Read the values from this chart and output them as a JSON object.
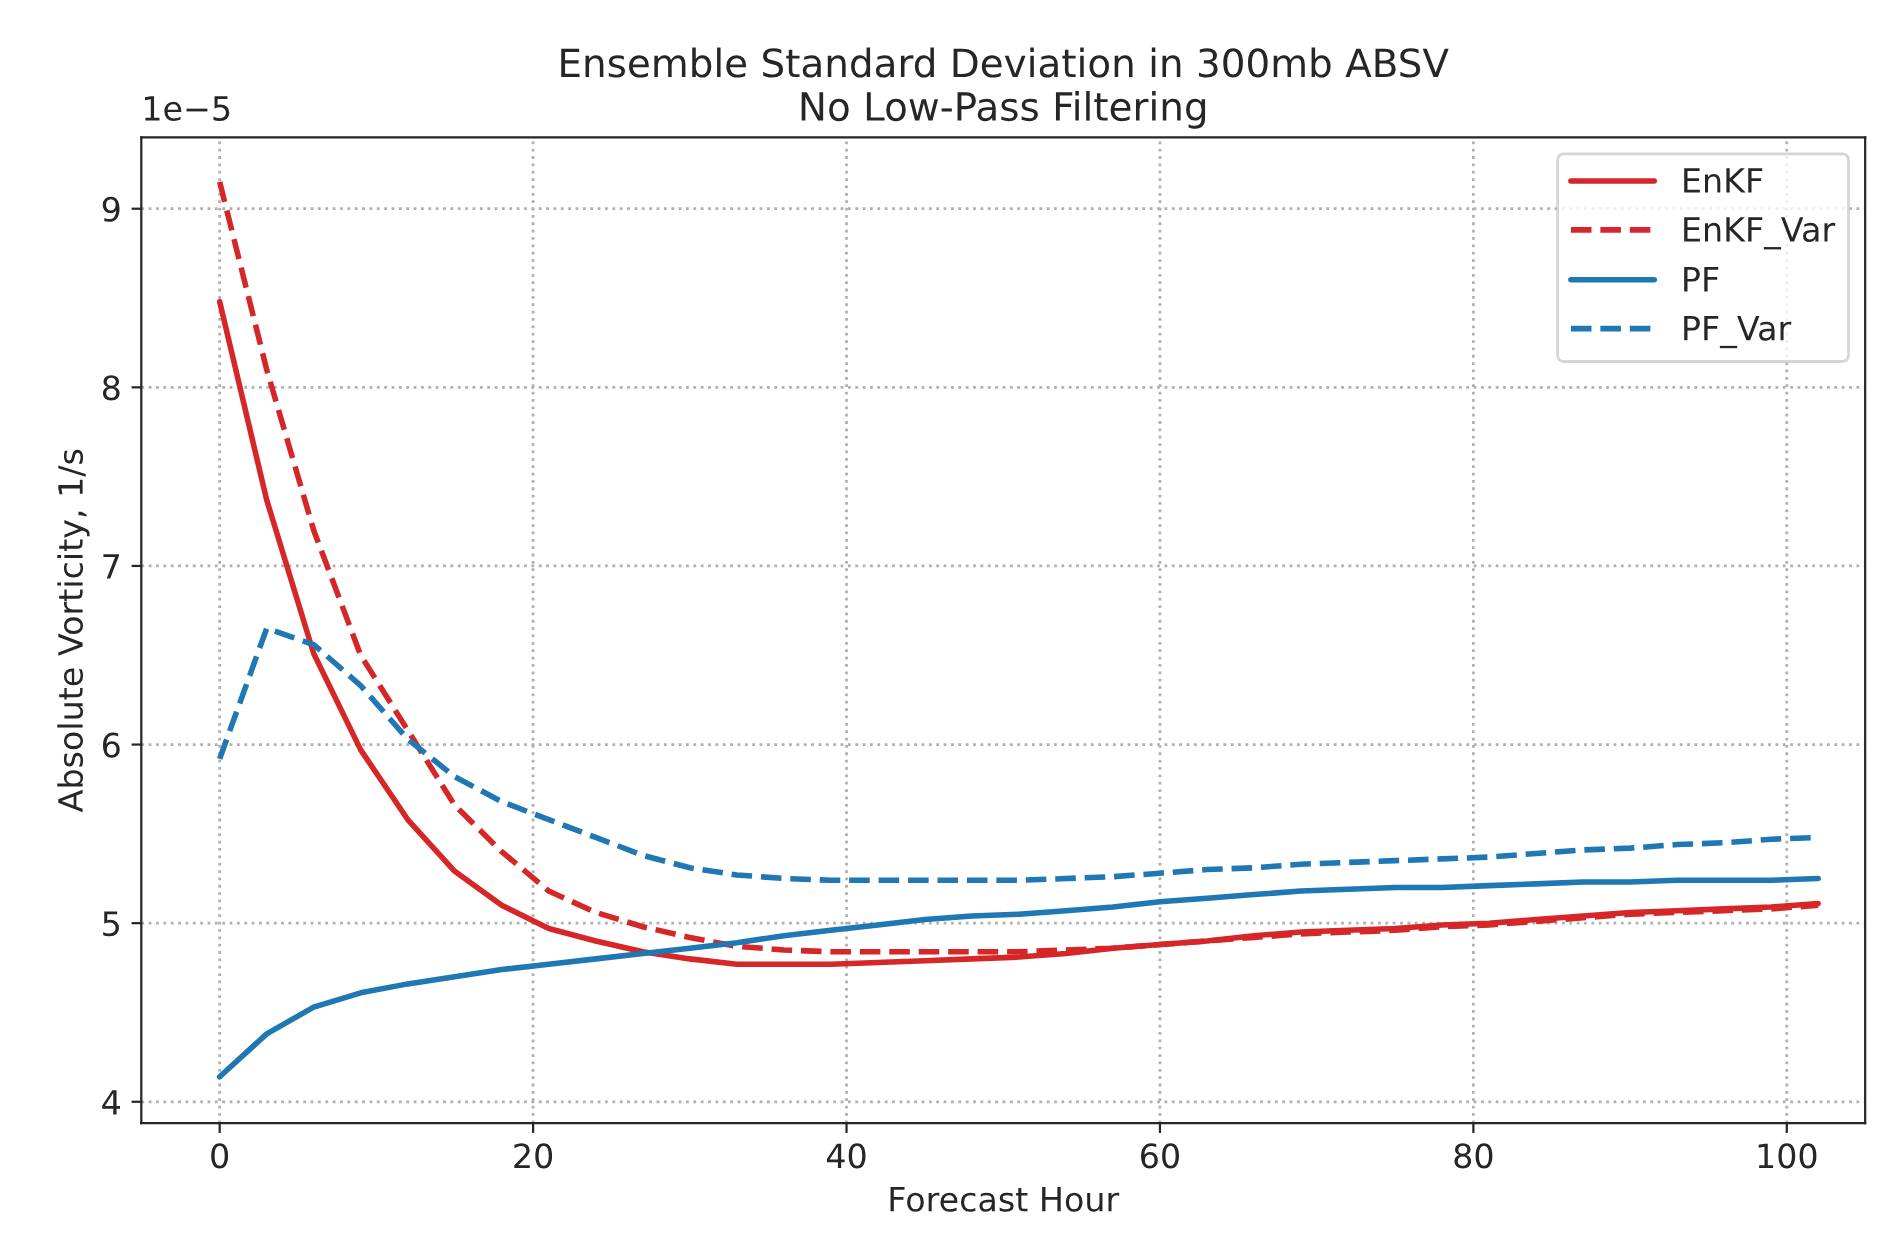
{
  "chart_data": {
    "type": "line",
    "title": "Ensemble Standard Deviation in 300mb ABSV\nNo Low-Pass Filtering",
    "xlabel": "Forecast Hour",
    "ylabel": "Absolute Vorticity, 1/s",
    "annotations": [
      "1e−5"
    ],
    "x": [
      0,
      3,
      6,
      9,
      12,
      15,
      18,
      21,
      24,
      27,
      30,
      33,
      36,
      39,
      42,
      45,
      48,
      51,
      54,
      57,
      60,
      63,
      66,
      69,
      72,
      75,
      78,
      81,
      84,
      87,
      90,
      93,
      96,
      99,
      102
    ],
    "series": [
      {
        "name": "EnKF",
        "color": "#d62728",
        "line_style": "solid",
        "values": [
          8.48,
          7.37,
          6.51,
          5.97,
          5.58,
          5.29,
          5.1,
          4.97,
          4.9,
          4.84,
          4.8,
          4.77,
          4.77,
          4.77,
          4.78,
          4.79,
          4.8,
          4.81,
          4.83,
          4.86,
          4.88,
          4.9,
          4.93,
          4.95,
          4.96,
          4.97,
          4.99,
          5.0,
          5.02,
          5.04,
          5.06,
          5.07,
          5.08,
          5.09,
          5.11
        ]
      },
      {
        "name": "EnKF_Var",
        "color": "#d62728",
        "line_style": "dashed",
        "values": [
          9.15,
          8.1,
          7.2,
          6.5,
          6.08,
          5.66,
          5.4,
          5.18,
          5.06,
          4.98,
          4.92,
          4.87,
          4.85,
          4.84,
          4.84,
          4.84,
          4.84,
          4.84,
          4.85,
          4.86,
          4.88,
          4.9,
          4.92,
          4.94,
          4.95,
          4.96,
          4.98,
          4.99,
          5.01,
          5.03,
          5.05,
          5.06,
          5.07,
          5.08,
          5.1
        ]
      },
      {
        "name": "PF",
        "color": "#1f77b4",
        "line_style": "solid",
        "values": [
          4.14,
          4.38,
          4.53,
          4.61,
          4.66,
          4.7,
          4.74,
          4.77,
          4.8,
          4.83,
          4.86,
          4.89,
          4.93,
          4.96,
          4.99,
          5.02,
          5.04,
          5.05,
          5.07,
          5.09,
          5.12,
          5.14,
          5.16,
          5.18,
          5.19,
          5.2,
          5.2,
          5.21,
          5.22,
          5.23,
          5.23,
          5.24,
          5.24,
          5.24,
          5.25
        ]
      },
      {
        "name": "PF_Var",
        "color": "#1f77b4",
        "line_style": "dashed",
        "values": [
          5.92,
          6.65,
          6.56,
          6.33,
          6.03,
          5.82,
          5.68,
          5.58,
          5.48,
          5.38,
          5.31,
          5.27,
          5.25,
          5.24,
          5.24,
          5.24,
          5.24,
          5.24,
          5.25,
          5.26,
          5.28,
          5.3,
          5.31,
          5.33,
          5.34,
          5.35,
          5.36,
          5.37,
          5.39,
          5.41,
          5.42,
          5.44,
          5.45,
          5.47,
          5.48
        ]
      }
    ],
    "xlim": [
      -5,
      105
    ],
    "xticks": [
      0,
      20,
      40,
      60,
      80,
      100
    ],
    "ylim": [
      3.88,
      9.4
    ],
    "yticks": [
      4,
      5,
      6,
      7,
      8,
      9
    ],
    "grid": true,
    "legend": "top right",
    "marker": "none"
  }
}
